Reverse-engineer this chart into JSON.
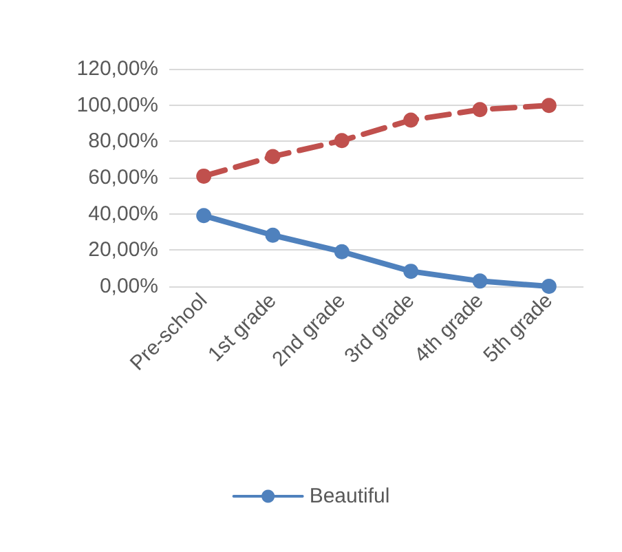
{
  "chart_data": {
    "type": "line",
    "categories": [
      "Pre-school",
      "1st grade",
      "2nd grade",
      "3rd grade",
      "4th grade",
      "5th grade"
    ],
    "series": [
      {
        "name": "Beautiful",
        "color": "#4f81bd",
        "values": [
          39,
          28.2,
          19.1,
          8.3,
          2.9,
          0
        ],
        "line_style": "solid"
      },
      {
        "color": "#c0504d",
        "values": [
          60.8,
          71.6,
          80.4,
          91.7,
          97.5,
          99.8
        ],
        "line_style": "dashed"
      }
    ],
    "ylim": [
      0,
      120
    ],
    "yticks": [
      {
        "value": 0,
        "label": "0,00%"
      },
      {
        "value": 20,
        "label": "20,00%"
      },
      {
        "value": 40,
        "label": "40,00%"
      },
      {
        "value": 60,
        "label": "60,00%"
      },
      {
        "value": 80,
        "label": "80,00%"
      },
      {
        "value": 100,
        "label": "100,00%"
      },
      {
        "value": 120,
        "label": "120,00%"
      }
    ],
    "grid": "y",
    "legend": "bottom",
    "marker": "circle"
  }
}
